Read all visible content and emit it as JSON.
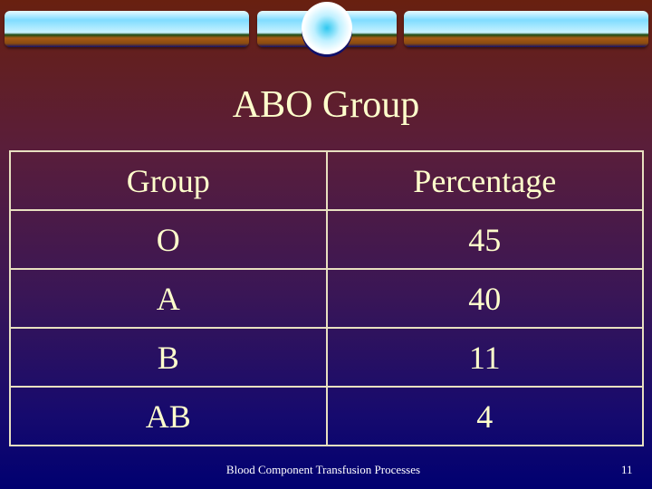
{
  "slide": {
    "title": "ABO Group",
    "table": {
      "headers": [
        "Group",
        "Percentage"
      ],
      "rows": [
        [
          "O",
          "45"
        ],
        [
          "A",
          "40"
        ],
        [
          "B",
          "11"
        ],
        [
          "AB",
          "4"
        ]
      ]
    },
    "footer": "Blood Component Transfusion Processes",
    "page_number": "11"
  },
  "colors": {
    "text": "#ffffcc",
    "background_top": "#682010",
    "background_bottom": "#000070"
  }
}
